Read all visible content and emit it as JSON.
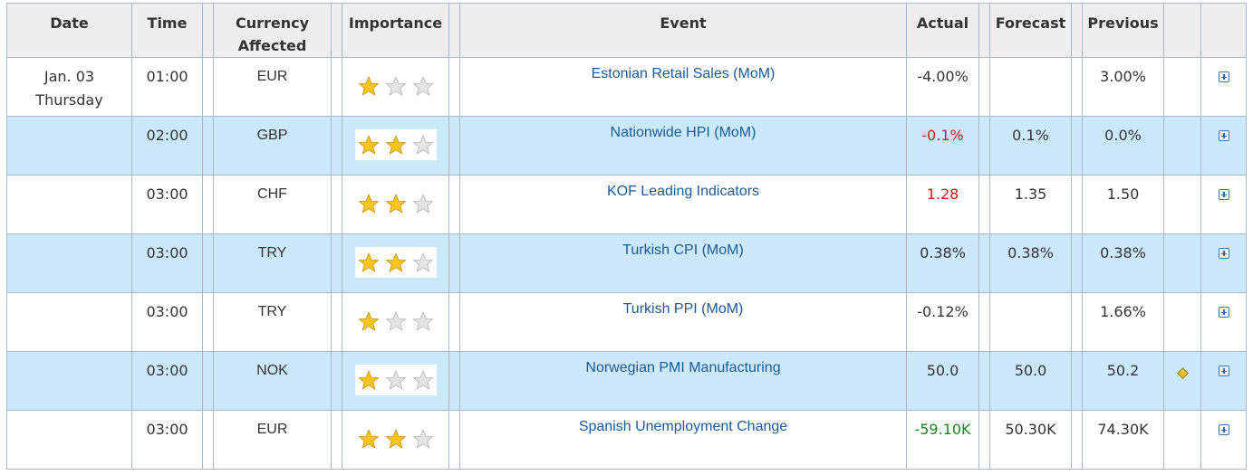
{
  "columns": {
    "date": "Date",
    "time": "Time",
    "currency_line1": "Currency",
    "currency_line2": "Affected",
    "importance": "Importance",
    "event": "Event",
    "actual": "Actual",
    "forecast": "Forecast",
    "previous": "Previous"
  },
  "date_group": {
    "date": "Jan. 03",
    "weekday": "Thursday"
  },
  "colors": {
    "positive": "#1a8a1a",
    "negative": "#d31919",
    "link": "#1a5a96",
    "alt_row": "#cce9fc"
  },
  "rows": [
    {
      "time": "01:00",
      "currency": "EUR",
      "importance": 1,
      "event": "Estonian Retail Sales (MoM)",
      "actual": "-4.00%",
      "actual_tone": "neutral",
      "forecast": "",
      "previous": "3.00%",
      "alert": false
    },
    {
      "time": "02:00",
      "currency": "GBP",
      "importance": 2,
      "event": "Nationwide HPI (MoM)",
      "actual": "-0.1%",
      "actual_tone": "negative",
      "forecast": "0.1%",
      "previous": "0.0%",
      "alert": false
    },
    {
      "time": "03:00",
      "currency": "CHF",
      "importance": 2,
      "event": "KOF Leading Indicators",
      "actual": "1.28",
      "actual_tone": "negative",
      "forecast": "1.35",
      "previous": "1.50",
      "alert": false
    },
    {
      "time": "03:00",
      "currency": "TRY",
      "importance": 2,
      "event": "Turkish CPI (MoM)",
      "actual": "0.38%",
      "actual_tone": "neutral",
      "forecast": "0.38%",
      "previous": "0.38%",
      "alert": false
    },
    {
      "time": "03:00",
      "currency": "TRY",
      "importance": 1,
      "event": "Turkish PPI (MoM)",
      "actual": "-0.12%",
      "actual_tone": "neutral",
      "forecast": "",
      "previous": "1.66%",
      "alert": false
    },
    {
      "time": "03:00",
      "currency": "NOK",
      "importance": 1,
      "event": "Norwegian PMI Manufacturing",
      "actual": "50.0",
      "actual_tone": "neutral",
      "forecast": "50.0",
      "previous": "50.2",
      "alert": true
    },
    {
      "time": "03:00",
      "currency": "EUR",
      "importance": 2,
      "event": "Spanish Unemployment Change",
      "actual": "-59.10K",
      "actual_tone": "positive",
      "forecast": "50.30K",
      "previous": "74.30K",
      "alert": false
    }
  ]
}
